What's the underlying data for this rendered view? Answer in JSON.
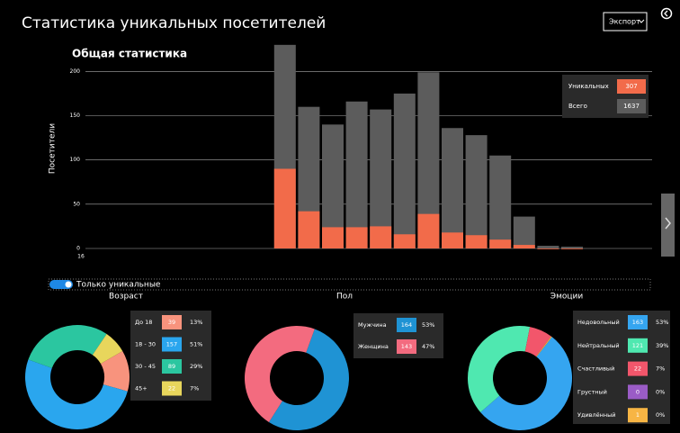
{
  "header": {
    "title": "Статистика уникальных посетителей",
    "export": "Экспорт"
  },
  "toggle": {
    "label": "Только уникальные"
  },
  "chart_data": [
    {
      "type": "bar",
      "title": "Общая статистика",
      "y_label": "Посетители",
      "categories": [
        "16",
        null,
        null,
        null,
        null,
        null,
        null,
        null,
        null,
        null,
        null,
        null,
        null,
        null,
        null,
        null,
        null,
        null,
        null,
        null,
        null
      ],
      "series": [
        {
          "name": "Всего",
          "color": "#5c5c5c",
          "total": 1637,
          "values": [
            null,
            null,
            null,
            null,
            null,
            null,
            null,
            null,
            230,
            160,
            140,
            166,
            157,
            175,
            199,
            136,
            128,
            105,
            36,
            3,
            2
          ]
        },
        {
          "name": "Уникальных",
          "color": "#f26b4a",
          "total": 307,
          "values": [
            null,
            null,
            null,
            null,
            null,
            null,
            null,
            null,
            90,
            42,
            24,
            24,
            25,
            16,
            39,
            18,
            15,
            10,
            4,
            0,
            0
          ]
        }
      ],
      "ylim": [
        0,
        240
      ],
      "yticks": [
        0,
        50,
        100,
        150,
        200
      ],
      "grid": true
    },
    {
      "type": "donut",
      "title": "Возраст",
      "labels": [
        "До 18",
        "18 - 30",
        "30 - 45",
        "45+"
      ],
      "values": [
        39,
        157,
        89,
        22
      ],
      "percent_labels": [
        "13%",
        "51%",
        "29%",
        "7%"
      ],
      "colors": [
        "#f8937d",
        "#2aa6ee",
        "#2bc6a0",
        "#e8d65c"
      ]
    },
    {
      "type": "donut",
      "title": "Пол",
      "labels": [
        "Мужчина",
        "Женщина"
      ],
      "values": [
        164,
        143
      ],
      "percent_labels": [
        "53%",
        "47%"
      ],
      "colors": [
        "#1f93d4",
        "#f36b7f"
      ]
    },
    {
      "type": "donut",
      "title": "Эмоции",
      "labels": [
        "Недовольный",
        "Нейтральный",
        "Счастливый",
        "Грустный",
        "Удивлённый"
      ],
      "values": [
        163,
        121,
        22,
        0,
        1
      ],
      "percent_labels": [
        "53%",
        "39%",
        "7%",
        "0%",
        "0%"
      ],
      "colors": [
        "#35a5f0",
        "#4fe8b0",
        "#f2566b",
        "#9a5cc6",
        "#f7b544"
      ]
    }
  ]
}
